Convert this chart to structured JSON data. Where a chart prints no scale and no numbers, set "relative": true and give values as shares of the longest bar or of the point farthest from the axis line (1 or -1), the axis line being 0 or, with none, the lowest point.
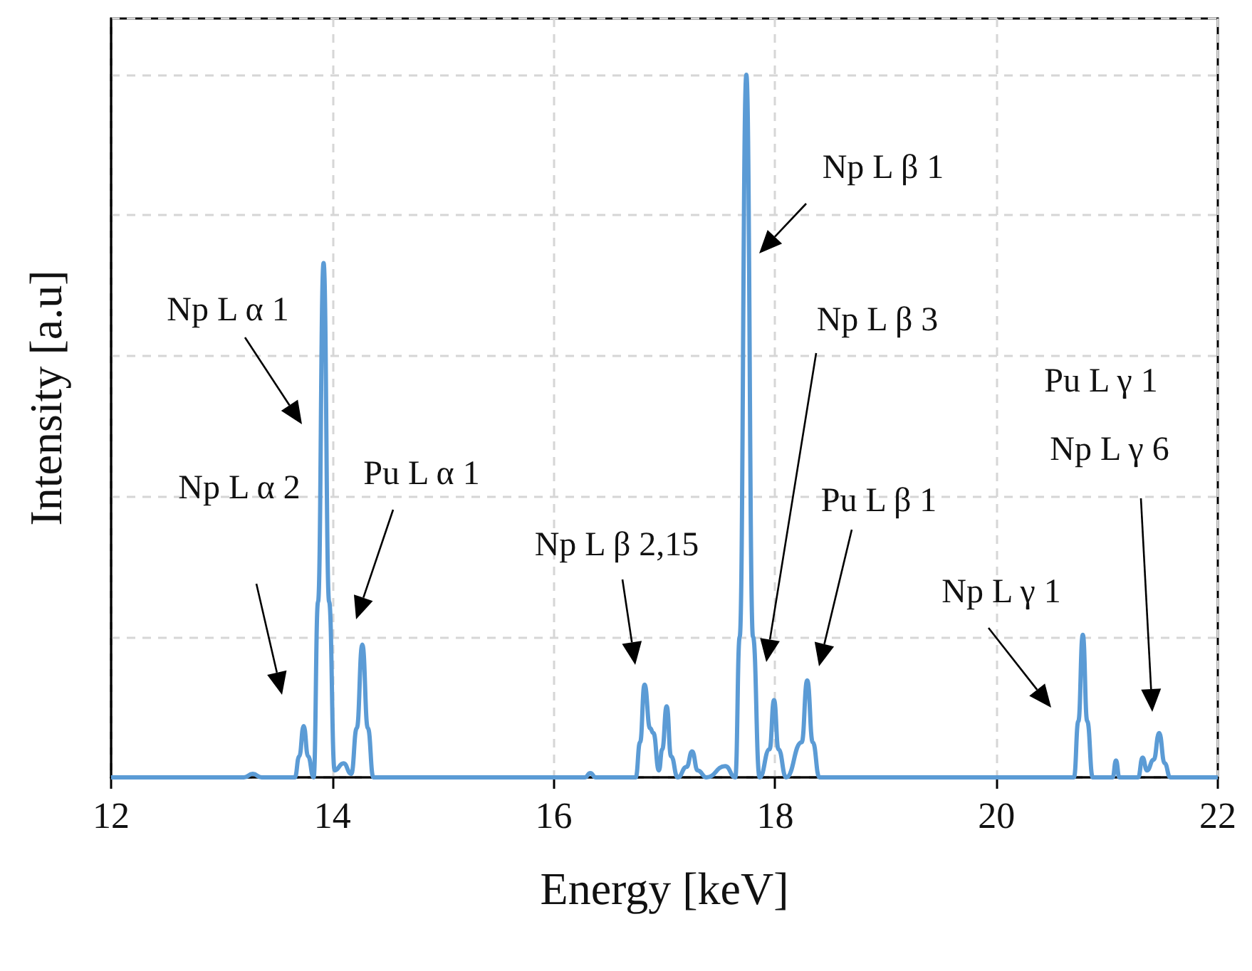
{
  "chart_data": {
    "type": "line",
    "relative": true,
    "xlabel": "Energy [keV]",
    "ylabel": "Intensity [a.u]",
    "xlim": [
      12,
      22
    ],
    "xticks": [
      12,
      14,
      16,
      18,
      20,
      22
    ],
    "grid": true,
    "marker": "none",
    "line_style": "solid",
    "x": [
      12,
      13.2,
      13.28,
      13.36,
      13.66,
      13.7,
      13.74,
      13.78,
      13.83,
      13.87,
      13.92,
      13.97,
      14.02,
      14.1,
      14.17,
      14.22,
      14.27,
      14.32,
      14.37,
      16.28,
      16.33,
      16.38,
      16.74,
      16.78,
      16.82,
      16.87,
      16.9,
      16.95,
      16.98,
      17.02,
      17.06,
      17.12,
      17.2,
      17.25,
      17.3,
      17.38,
      17.55,
      17.64,
      17.68,
      17.74,
      17.8,
      17.86,
      17.95,
      17.99,
      18.03,
      18.1,
      18.24,
      18.29,
      18.34,
      18.4,
      20.7,
      20.74,
      20.78,
      20.82,
      20.87,
      21.05,
      21.08,
      21.11,
      21.28,
      21.32,
      21.36,
      21.42,
      21.47,
      21.52,
      21.57,
      22
    ],
    "series": [
      {
        "color": "#5b9bd5",
        "values": [
          0,
          0,
          0.005,
          0,
          0,
          0.03,
          0.073,
          0.03,
          0,
          0.25,
          0.732,
          0.25,
          0.01,
          0.02,
          0.005,
          0.07,
          0.189,
          0.07,
          0,
          0,
          0.006,
          0,
          0,
          0.05,
          0.132,
          0.07,
          0.063,
          0.01,
          0.04,
          0.101,
          0.03,
          0,
          0.015,
          0.037,
          0.01,
          0,
          0.016,
          0,
          0.2,
          1,
          0.2,
          0,
          0.04,
          0.11,
          0.04,
          0,
          0.05,
          0.138,
          0.05,
          0,
          0,
          0.08,
          0.203,
          0.08,
          0,
          0,
          0.024,
          0,
          0,
          0.028,
          0.01,
          0.025,
          0.063,
          0.02,
          0,
          0
        ]
      }
    ],
    "annotations": [
      "Np L α 2",
      "Np L α 1",
      "Pu L α 1",
      "Np L β 2,15",
      "Np L β 1",
      "Np L β 3",
      "Pu L β 1",
      "Np L γ 1",
      "Pu L γ 1",
      "Np L γ 6"
    ]
  }
}
